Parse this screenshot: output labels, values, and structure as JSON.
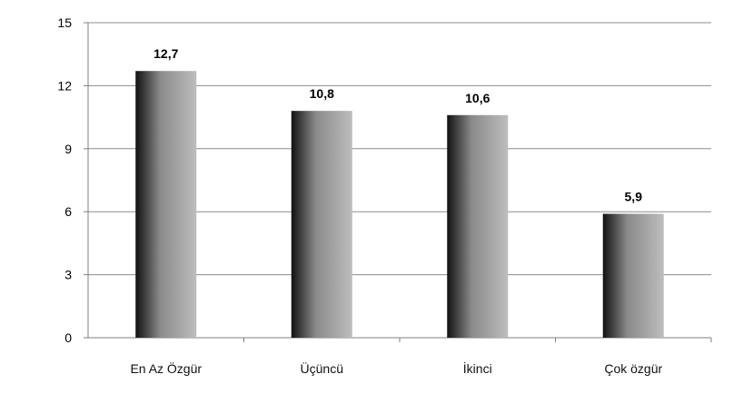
{
  "chart_data": {
    "type": "bar",
    "categories": [
      "En Az Özgür",
      "Üçüncü",
      "İkinci",
      "Çok özgür"
    ],
    "values": [
      12.7,
      10.8,
      10.6,
      5.9
    ],
    "value_labels": [
      "12,7",
      "10,8",
      "10,6",
      "5,9"
    ],
    "title": "",
    "xlabel": "",
    "ylabel": "",
    "ylim": [
      0,
      15
    ],
    "yticks": [
      0,
      3,
      6,
      9,
      12,
      15
    ],
    "grid": true,
    "legend": "none",
    "colors": {
      "bar_dark": "#111111",
      "bar_mid": "#8a8a8a",
      "bar_light": "#bdbdbd",
      "grid": "#8c8c8c",
      "axis": "#7f7f7f"
    }
  }
}
